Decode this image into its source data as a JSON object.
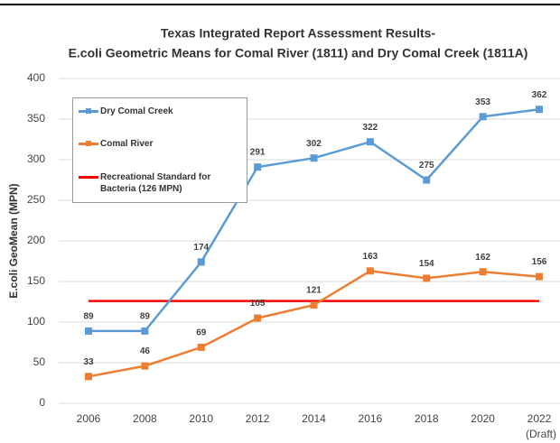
{
  "chart_data": {
    "type": "line",
    "title": "Texas Integrated Report Assessment Results-",
    "subtitle": "E.coli Geometric Means for Comal River (1811) and Dry Comal Creek (1811A)",
    "y_label": "E.coli GeoMean (MPN)",
    "categories": [
      "2006",
      "2008",
      "2010",
      "2012",
      "2014",
      "2016",
      "2018",
      "2020",
      "2022"
    ],
    "category_note": "(Draft)",
    "series": [
      {
        "name": "Dry Comal Creek",
        "color": "#5b9bd5",
        "values": [
          89,
          89,
          174,
          291,
          302,
          322,
          275,
          353,
          362
        ]
      },
      {
        "name": "Comal River",
        "color": "#ed7d31",
        "values": [
          33,
          46,
          69,
          105,
          121,
          163,
          154,
          162,
          156
        ]
      }
    ],
    "reference": {
      "name": "Recreational Standard for Bacteria (126 MPN)",
      "value": 126,
      "color": "#ff0000"
    },
    "ylim": [
      0,
      400
    ],
    "yticks": [
      0,
      50,
      100,
      150,
      200,
      250,
      300,
      350,
      400
    ],
    "grid": true
  }
}
